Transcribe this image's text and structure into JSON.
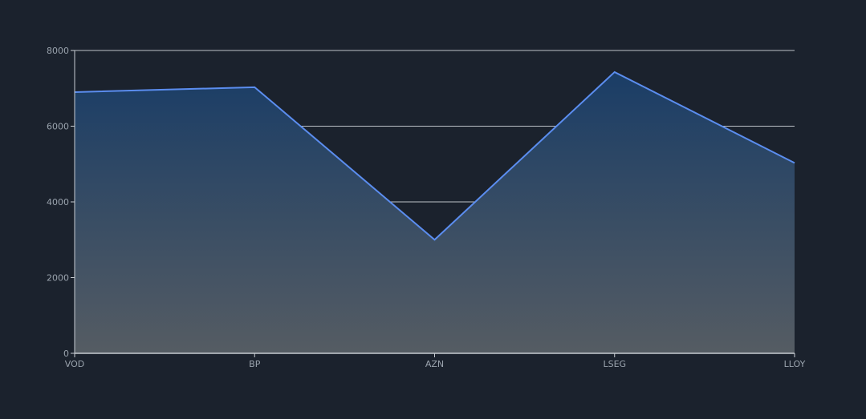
{
  "chart_data": {
    "type": "area",
    "title": "",
    "xlabel": "",
    "ylabel": "",
    "categories": [
      "VOD",
      "BP",
      "AZN",
      "LSEG",
      "LLOY"
    ],
    "series": [
      {
        "values": [
          6900,
          7030,
          3000,
          7430,
          5030
        ]
      }
    ],
    "ylim": [
      0,
      8000
    ],
    "yticks": [
      0,
      2000,
      4000,
      6000,
      8000
    ],
    "grid": true,
    "legend": "none"
  },
  "colors": {
    "background": "#1b222d",
    "line": "#5b8def",
    "fill_top": "#1a3d66",
    "fill_bottom": "#555c63",
    "grid": "#d9dde2",
    "axis": "#c7ccd2",
    "tick_text": "#9aa3ad"
  }
}
